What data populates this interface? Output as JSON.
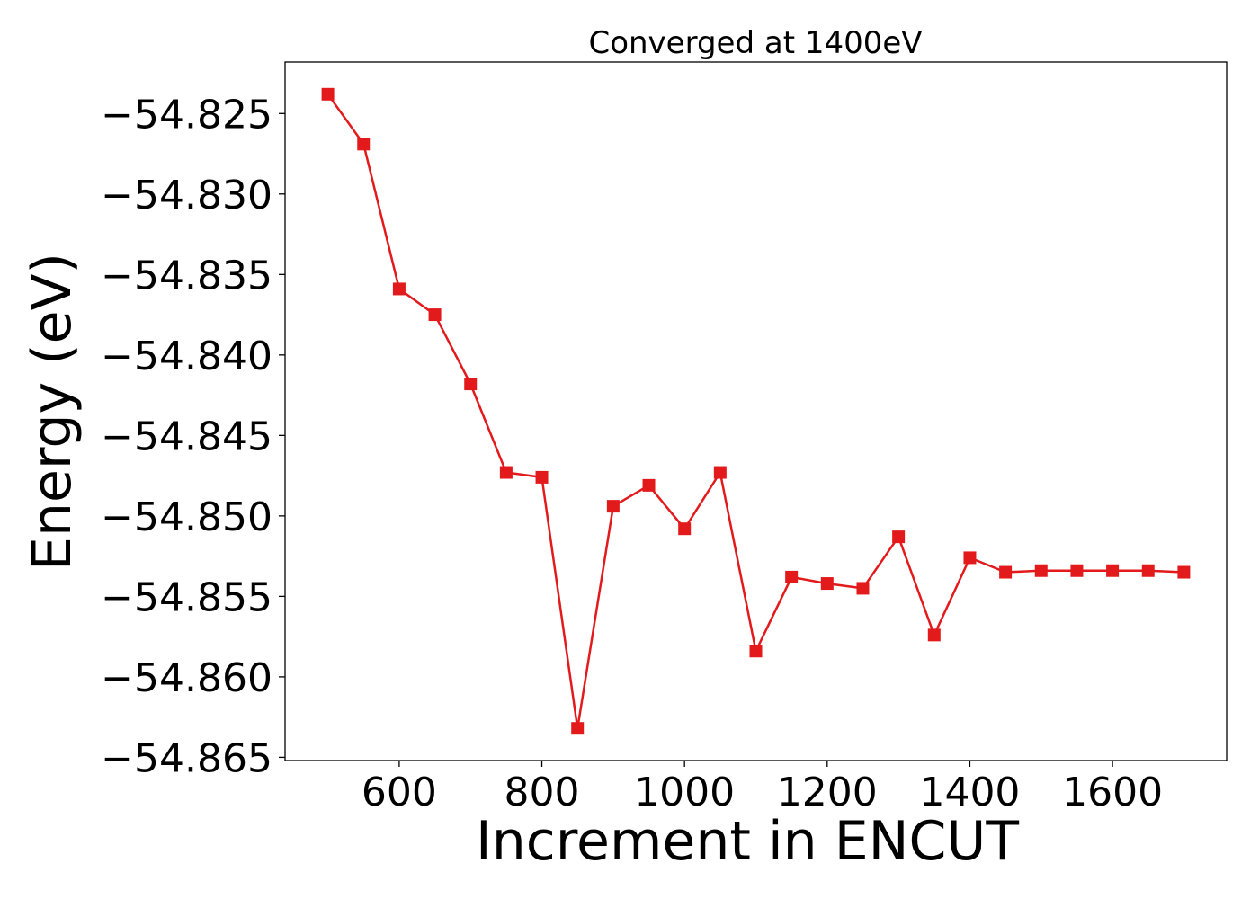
{
  "chart_data": {
    "type": "line",
    "title": "Converged at 1400eV",
    "xlabel": "Increment in ENCUT",
    "ylabel": "Energy (eV)",
    "xlim": [
      440,
      1760
    ],
    "ylim": [
      -54.8652,
      -54.8218
    ],
    "xticks": [
      600,
      800,
      1000,
      1200,
      1400,
      1600
    ],
    "yticks": [
      -54.825,
      -54.83,
      -54.835,
      -54.84,
      -54.845,
      -54.85,
      -54.855,
      -54.86,
      -54.865
    ],
    "grid": false,
    "series": [
      {
        "color": "#e31a1c",
        "marker": "square",
        "x": [
          500,
          550,
          600,
          650,
          700,
          750,
          800,
          850,
          900,
          950,
          1000,
          1050,
          1100,
          1150,
          1200,
          1250,
          1300,
          1350,
          1400,
          1450,
          1500,
          1550,
          1600,
          1650,
          1700
        ],
        "y": [
          -54.8238,
          -54.8269,
          -54.8359,
          -54.8375,
          -54.8418,
          -54.8473,
          -54.8476,
          -54.8632,
          -54.8494,
          -54.8481,
          -54.8508,
          -54.8473,
          -54.8584,
          -54.8538,
          -54.8542,
          -54.8545,
          -54.8513,
          -54.8574,
          -54.8526,
          -54.8535,
          -54.8534,
          -54.8534,
          -54.8534,
          -54.8534,
          -54.8535
        ]
      }
    ]
  }
}
